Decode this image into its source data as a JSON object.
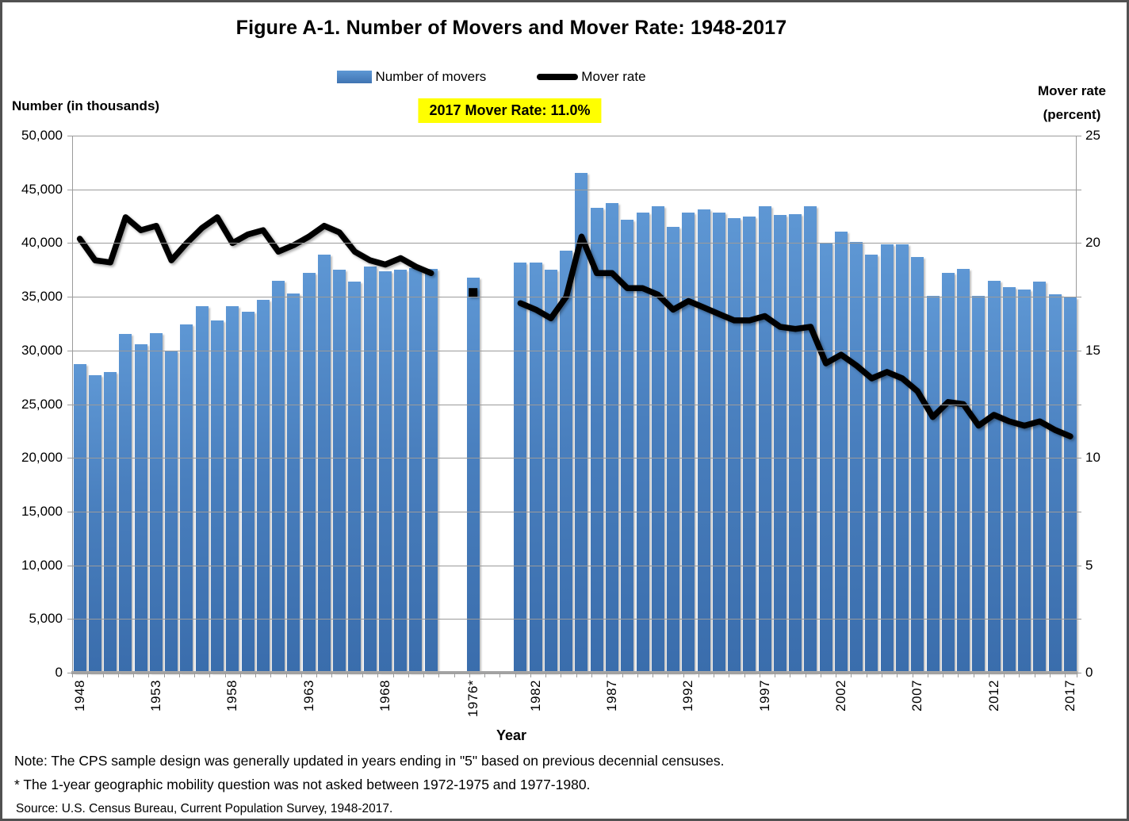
{
  "window": {
    "title": "Figure A-1. Number of Movers and Mover Rate: 1948-2017"
  },
  "legend": {
    "movers": "Number of movers",
    "rate": "Mover rate"
  },
  "callout": {
    "text": "2017 Mover Rate: 11.0%"
  },
  "axes": {
    "left": {
      "title": "Number (in thousands)",
      "tick_labels": [
        "50,000",
        "45,000",
        "40,000",
        "35,000",
        "30,000",
        "25,000",
        "20,000",
        "15,000",
        "10,000",
        "5,000",
        "0"
      ]
    },
    "right": {
      "title_line1": "Mover rate",
      "title_line2": "(percent)",
      "tick_labels": [
        "25",
        "20",
        "15",
        "10",
        "5",
        "0"
      ]
    },
    "x": {
      "title": "Year",
      "labeled_ticks": [
        "1948",
        "1953",
        "1958",
        "1963",
        "1968",
        "1976*",
        "1982",
        "1987",
        "1992",
        "1997",
        "2002",
        "2007",
        "2012",
        "2017"
      ]
    }
  },
  "notes": {
    "note1": "Note: The CPS sample design was generally updated in years ending in \"5\" based on previous decennial censuses.",
    "note2": "* The 1-year geographic mobility question was not asked between 1972-1975 and 1977-1980.",
    "source": "Source: U.S. Census Bureau, Current Population Survey, 1948-2017."
  },
  "colors": {
    "bar_top": "#5e97d4",
    "bar_bottom": "#3a6dac",
    "line": "#000000",
    "highlight": "#ffff00",
    "grid": "#9b9b9b",
    "axis": "#a6a6a6"
  },
  "chart_data": {
    "type": "bar+line",
    "title": "Figure A-1. Number of Movers and Mover Rate: 1948-2017",
    "x": [
      1948,
      1949,
      1950,
      1951,
      1952,
      1953,
      1954,
      1955,
      1956,
      1957,
      1958,
      1959,
      1960,
      1961,
      1962,
      1963,
      1964,
      1965,
      1966,
      1967,
      1968,
      1969,
      1970,
      1971,
      1976,
      1981,
      1982,
      1983,
      1984,
      1985,
      1986,
      1987,
      1988,
      1989,
      1990,
      1991,
      1992,
      1993,
      1994,
      1995,
      1996,
      1997,
      1998,
      1999,
      2000,
      2001,
      2002,
      2003,
      2004,
      2005,
      2006,
      2007,
      2008,
      2009,
      2010,
      2011,
      2012,
      2013,
      2014,
      2015,
      2016,
      2017
    ],
    "series": [
      {
        "name": "Number of movers",
        "type": "bar",
        "axis": "left",
        "values": [
          28700,
          27700,
          28000,
          31500,
          30600,
          31600,
          30000,
          32400,
          34100,
          32800,
          34100,
          33600,
          34700,
          36500,
          35300,
          37200,
          38900,
          37500,
          36400,
          37800,
          37400,
          37500,
          37700,
          37600,
          36800,
          38200,
          38200,
          37500,
          39300,
          46500,
          43300,
          43700,
          42200,
          42800,
          43400,
          41500,
          42800,
          43100,
          42800,
          42300,
          42500,
          43400,
          42600,
          42700,
          43400,
          40000,
          41100,
          40100,
          38900,
          39900,
          39900,
          38700,
          35100,
          37200,
          37600,
          35100,
          36500,
          35900,
          35700,
          36400,
          35200,
          34900
        ]
      },
      {
        "name": "Mover rate",
        "type": "line",
        "axis": "right",
        "values": [
          20.2,
          19.2,
          19.1,
          21.2,
          20.6,
          20.8,
          19.2,
          20.0,
          20.7,
          21.2,
          20.0,
          20.4,
          20.6,
          19.6,
          19.9,
          20.3,
          20.8,
          20.5,
          19.6,
          19.2,
          19.0,
          19.3,
          18.9,
          18.6,
          17.7,
          17.2,
          16.9,
          16.5,
          17.5,
          20.3,
          18.6,
          18.6,
          17.9,
          17.9,
          17.6,
          16.9,
          17.3,
          17.0,
          16.7,
          16.4,
          16.4,
          16.6,
          16.1,
          16.0,
          16.1,
          14.4,
          14.8,
          14.3,
          13.7,
          14.0,
          13.7,
          13.1,
          11.9,
          12.6,
          12.5,
          11.5,
          12.0,
          11.7,
          11.5,
          11.7,
          11.3,
          11.0
        ]
      }
    ],
    "gap_years": [
      [
        1972,
        1975
      ],
      [
        1977,
        1980
      ]
    ],
    "isolated_point_year": 1976,
    "xlabel": "Year",
    "ylabel_left": "Number (in thousands)",
    "ylabel_right": "Mover rate (percent)",
    "left_ylim": [
      0,
      50000
    ],
    "right_ylim": [
      0,
      25
    ],
    "grid": true,
    "legend_position": "top"
  }
}
